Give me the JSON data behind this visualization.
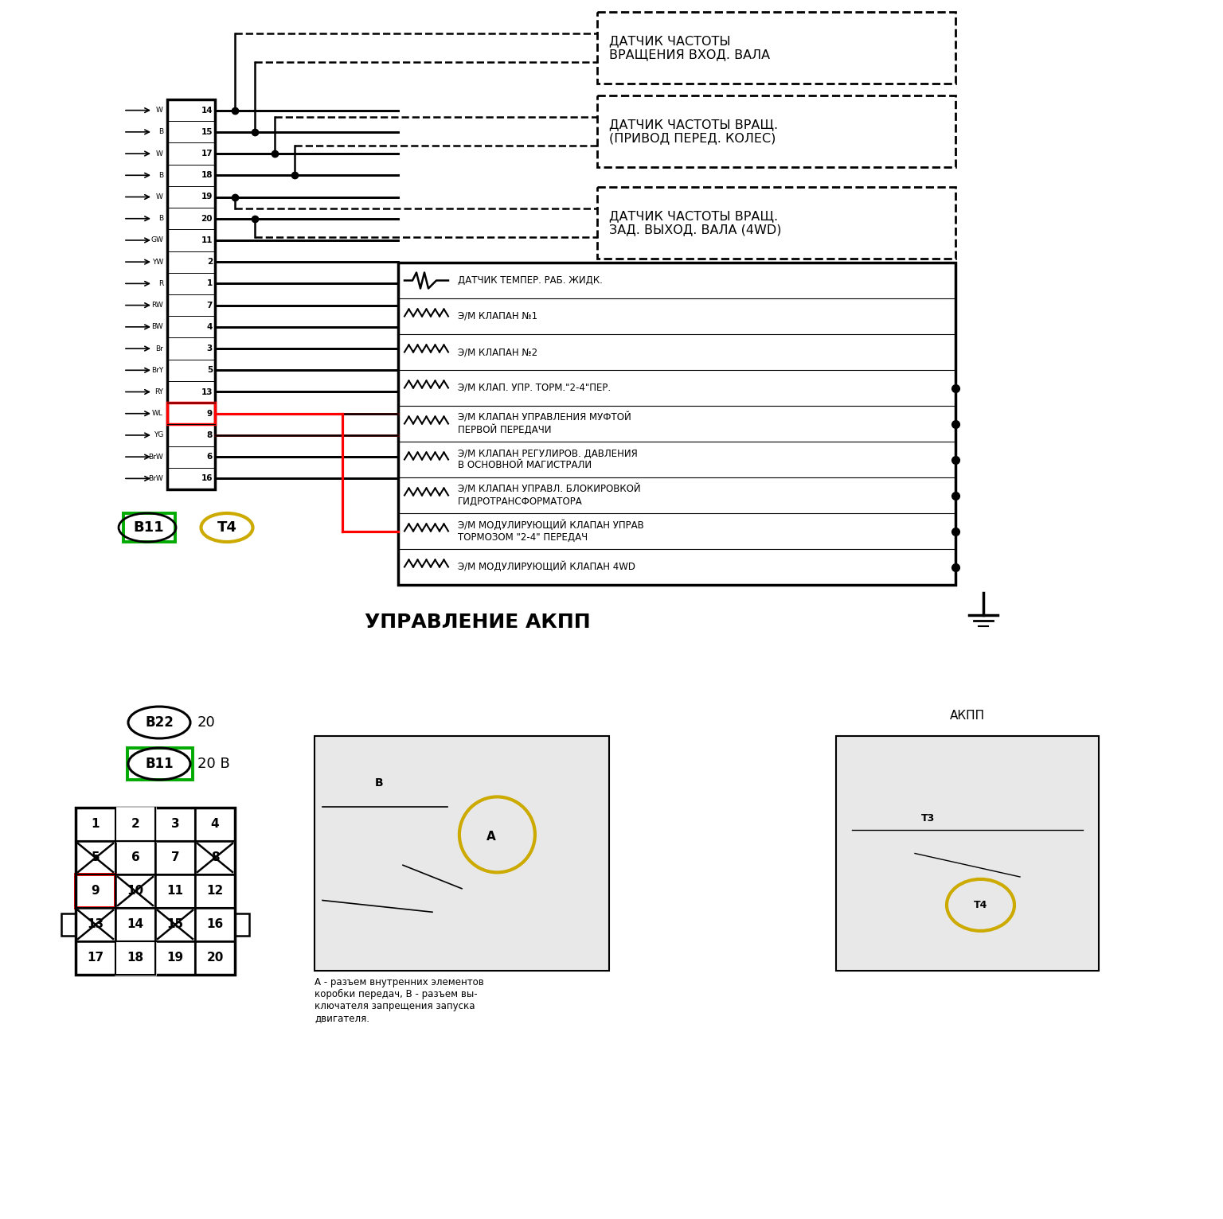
{
  "bg_color": "#ffffff",
  "title_bottom": "УПРАВЛЕНИЕ АКПП",
  "connector_pins": [
    {
      "pin": "14",
      "wire": "W"
    },
    {
      "pin": "15",
      "wire": "B"
    },
    {
      "pin": "17",
      "wire": "W"
    },
    {
      "pin": "18",
      "wire": "B"
    },
    {
      "pin": "19",
      "wire": "W"
    },
    {
      "pin": "20",
      "wire": "B"
    },
    {
      "pin": "11",
      "wire": "GW"
    },
    {
      "pin": "2",
      "wire": "YW"
    },
    {
      "pin": "1",
      "wire": "R"
    },
    {
      "pin": "7",
      "wire": "RW"
    },
    {
      "pin": "4",
      "wire": "BW"
    },
    {
      "pin": "3",
      "wire": "Br"
    },
    {
      "pin": "5",
      "wire": "BrY"
    },
    {
      "pin": "13",
      "wire": "RY"
    },
    {
      "pin": "9",
      "wire": "WL"
    },
    {
      "pin": "8",
      "wire": "YG"
    },
    {
      "pin": "6",
      "wire": "BrW"
    },
    {
      "pin": "16",
      "wire": "BrW"
    }
  ],
  "sensor_boxes": [
    {
      "label": "ДАТЧИК ЧАСТОТЫ\nВРАЩЕНИЯ ВХОД. ВАЛА",
      "pin_idxs": [
        0,
        1
      ]
    },
    {
      "label": "ДАТЧИК ЧАСТОТЫ ВРАЩ.\n(ПРИВОД ПЕРЕД. КОЛЕС)",
      "pin_idxs": [
        2,
        3
      ]
    },
    {
      "label": "ДАТЧИК ЧАСТОТЫ ВРАЩ.\nЗАД. ВЫХОД. ВАЛА (4WD)",
      "pin_idxs": [
        4,
        5
      ]
    }
  ],
  "valve_box_items": [
    "ДАТЧИК ТЕМПЕР. РАБ. ЖИДК.",
    "Э/М КЛАПАН №1",
    "Э/М КЛАПАН №2",
    "Э/М КЛАП. УПР. ТОРМ.\"2-4\"ПЕР.",
    "Э/М КЛАПАН УПРАВЛЕНИЯ МУФТОЙ\nПЕРВОЙ ПЕРЕДАЧИ",
    "Э/М КЛАПАН РЕГУЛИРОВ. ДАВЛЕНИЯ\nВ ОСНОВНОЙ МАГИСТРАЛИ",
    "Э/М КЛАПАН УПРАВЛ. БЛОКИРОВКОЙ\nГИДРОТРАНСФОРМАТОРА",
    "Э/М МОДУЛИРУЮЩИЙ КЛАПАН УПРАВ\nТОРМОЗОМ \"2-4\" ПЕРЕДАЧ",
    "Э/М МОДУЛИРУЮЩИЙ КЛАПАН 4WD"
  ],
  "valve_has_dot": [
    3,
    4,
    5,
    6,
    7,
    8
  ],
  "caption_text": "А - разъем внутренних элементов\nкоробки передач, В - разъем вы-\nключателя запрещения запуска\nдвигателя."
}
